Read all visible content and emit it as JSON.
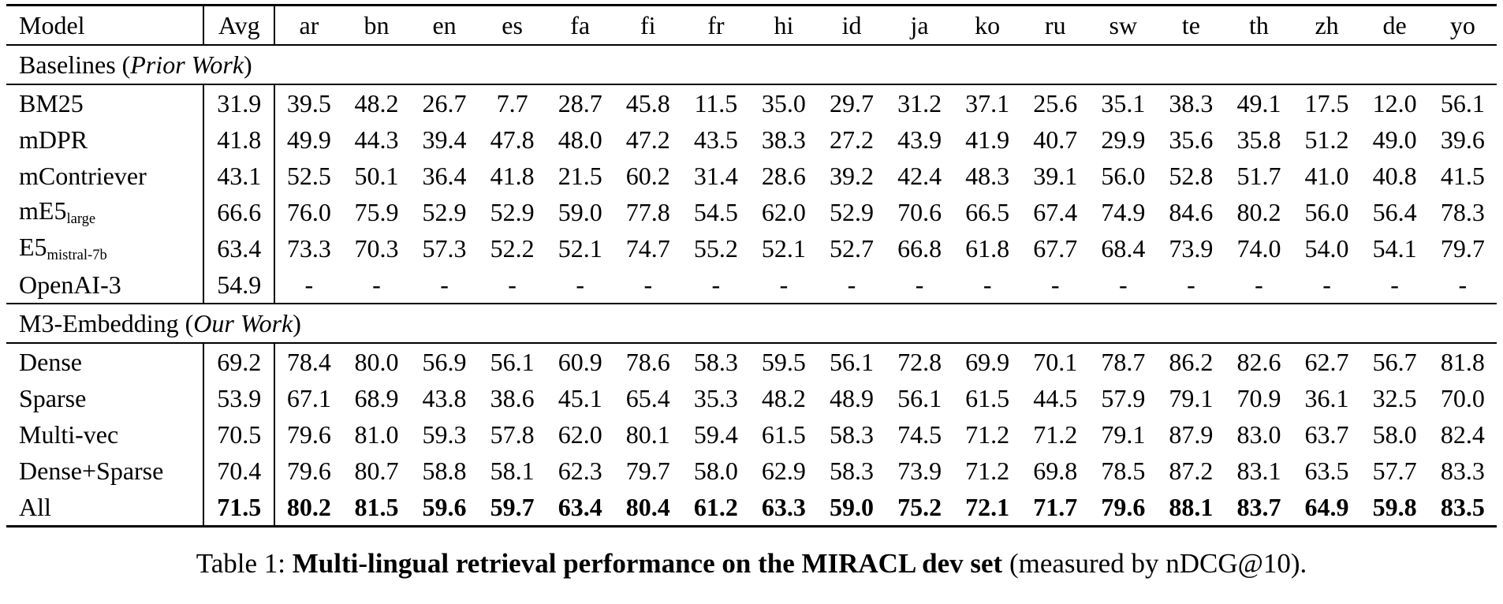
{
  "table": {
    "header": {
      "model": "Model",
      "avg": "Avg",
      "languages": [
        "ar",
        "bn",
        "en",
        "es",
        "fa",
        "fi",
        "fr",
        "hi",
        "id",
        "ja",
        "ko",
        "ru",
        "sw",
        "te",
        "th",
        "zh",
        "de",
        "yo"
      ]
    },
    "sections": [
      {
        "title_pre": "Baselines (",
        "title_italic": "Prior Work",
        "title_post": ")",
        "rows": [
          {
            "model": "BM25",
            "model_sub": "",
            "bold": false,
            "avg": "31.9",
            "values": [
              "39.5",
              "48.2",
              "26.7",
              "7.7",
              "28.7",
              "45.8",
              "11.5",
              "35.0",
              "29.7",
              "31.2",
              "37.1",
              "25.6",
              "35.1",
              "38.3",
              "49.1",
              "17.5",
              "12.0",
              "56.1"
            ]
          },
          {
            "model": "mDPR",
            "model_sub": "",
            "bold": false,
            "avg": "41.8",
            "values": [
              "49.9",
              "44.3",
              "39.4",
              "47.8",
              "48.0",
              "47.2",
              "43.5",
              "38.3",
              "27.2",
              "43.9",
              "41.9",
              "40.7",
              "29.9",
              "35.6",
              "35.8",
              "51.2",
              "49.0",
              "39.6"
            ]
          },
          {
            "model": "mContriever",
            "model_sub": "",
            "bold": false,
            "avg": "43.1",
            "values": [
              "52.5",
              "50.1",
              "36.4",
              "41.8",
              "21.5",
              "60.2",
              "31.4",
              "28.6",
              "39.2",
              "42.4",
              "48.3",
              "39.1",
              "56.0",
              "52.8",
              "51.7",
              "41.0",
              "40.8",
              "41.5"
            ]
          },
          {
            "model": "mE5",
            "model_sub": "large",
            "bold": false,
            "avg": "66.6",
            "values": [
              "76.0",
              "75.9",
              "52.9",
              "52.9",
              "59.0",
              "77.8",
              "54.5",
              "62.0",
              "52.9",
              "70.6",
              "66.5",
              "67.4",
              "74.9",
              "84.6",
              "80.2",
              "56.0",
              "56.4",
              "78.3"
            ]
          },
          {
            "model": "E5",
            "model_sub": "mistral-7b",
            "bold": false,
            "avg": "63.4",
            "values": [
              "73.3",
              "70.3",
              "57.3",
              "52.2",
              "52.1",
              "74.7",
              "55.2",
              "52.1",
              "52.7",
              "66.8",
              "61.8",
              "67.7",
              "68.4",
              "73.9",
              "74.0",
              "54.0",
              "54.1",
              "79.7"
            ]
          },
          {
            "model": "OpenAI-3",
            "model_sub": "",
            "bold": false,
            "avg": "54.9",
            "values": [
              "-",
              "-",
              "-",
              "-",
              "-",
              "-",
              "-",
              "-",
              "-",
              "-",
              "-",
              "-",
              "-",
              "-",
              "-",
              "-",
              "-",
              "-"
            ]
          }
        ]
      },
      {
        "title_pre": "M3-Embedding (",
        "title_italic": "Our Work",
        "title_post": ")",
        "rows": [
          {
            "model": "Dense",
            "model_sub": "",
            "bold": false,
            "avg": "69.2",
            "values": [
              "78.4",
              "80.0",
              "56.9",
              "56.1",
              "60.9",
              "78.6",
              "58.3",
              "59.5",
              "56.1",
              "72.8",
              "69.9",
              "70.1",
              "78.7",
              "86.2",
              "82.6",
              "62.7",
              "56.7",
              "81.8"
            ]
          },
          {
            "model": "Sparse",
            "model_sub": "",
            "bold": false,
            "avg": "53.9",
            "values": [
              "67.1",
              "68.9",
              "43.8",
              "38.6",
              "45.1",
              "65.4",
              "35.3",
              "48.2",
              "48.9",
              "56.1",
              "61.5",
              "44.5",
              "57.9",
              "79.1",
              "70.9",
              "36.1",
              "32.5",
              "70.0"
            ]
          },
          {
            "model": "Multi-vec",
            "model_sub": "",
            "bold": false,
            "avg": "70.5",
            "values": [
              "79.6",
              "81.0",
              "59.3",
              "57.8",
              "62.0",
              "80.1",
              "59.4",
              "61.5",
              "58.3",
              "74.5",
              "71.2",
              "71.2",
              "79.1",
              "87.9",
              "83.0",
              "63.7",
              "58.0",
              "82.4"
            ]
          },
          {
            "model": "Dense+Sparse",
            "model_sub": "",
            "bold": false,
            "avg": "70.4",
            "values": [
              "79.6",
              "80.7",
              "58.8",
              "58.1",
              "62.3",
              "79.7",
              "58.0",
              "62.9",
              "58.3",
              "73.9",
              "71.2",
              "69.8",
              "78.5",
              "87.2",
              "83.1",
              "63.5",
              "57.7",
              "83.3"
            ]
          },
          {
            "model": "All",
            "model_sub": "",
            "bold": true,
            "avg": "71.5",
            "values": [
              "80.2",
              "81.5",
              "59.6",
              "59.7",
              "63.4",
              "80.4",
              "61.2",
              "63.3",
              "59.0",
              "75.2",
              "72.1",
              "71.7",
              "79.6",
              "88.1",
              "83.7",
              "64.9",
              "59.8",
              "83.5"
            ]
          }
        ]
      }
    ],
    "caption": {
      "prefix": "Table 1: ",
      "bold_text": "Multi-lingual retrieval performance on the MIRACL dev set",
      "suffix": " (measured by nDCG@10)."
    }
  }
}
